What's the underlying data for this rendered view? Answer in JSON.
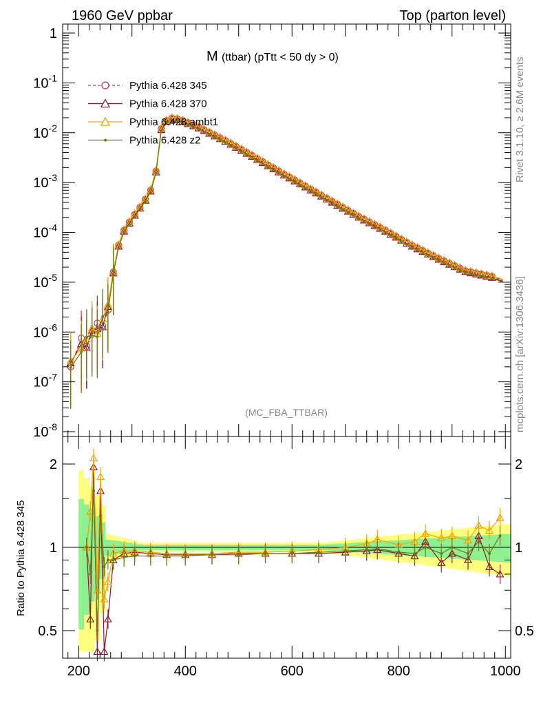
{
  "header": {
    "left": "1960 GeV ppbar",
    "right": "Top (parton level)"
  },
  "side_text": {
    "rivet": "Rivet 3.1.10, ≥ 2.6M events",
    "source": "mcplots.cern.ch [arXiv:1306.3436]"
  },
  "chart_data": [
    {
      "type": "line",
      "title_main": "M",
      "title_sub": "(ttbar)  (pTtt < 50 dy > 0)",
      "annotation": "(MC_FBA_TTBAR)",
      "xlim": [
        170,
        1010
      ],
      "ylim": [
        1e-08,
        2
      ],
      "log_y": true,
      "y_tick_labels": [
        "10^-8",
        "10^-7",
        "10^-6",
        "10^-5",
        "10^-4",
        "10^-3",
        "10^-2",
        "10^-1",
        "1"
      ],
      "legend_position": "top-left",
      "series": [
        {
          "name": "Pythia 6.428 345",
          "color": "#c0395a",
          "marker": "circle",
          "dashed": true
        },
        {
          "name": "Pythia 6.428 370",
          "color": "#8b1a2b",
          "marker": "triangle",
          "dashed": false
        },
        {
          "name": "Pythia 6.428 ambt1",
          "color": "#f0a500",
          "marker": "triangle",
          "dashed": false
        },
        {
          "name": "Pythia 6.428 z2",
          "color": "#6b7a1a",
          "marker": "dot",
          "dashed": false
        }
      ],
      "shape_points": {
        "x": [
          185,
          205,
          215,
          225,
          235,
          245,
          255,
          265,
          275,
          285,
          295,
          305,
          315,
          325,
          335,
          345,
          355,
          365,
          375,
          385,
          395,
          425,
          475,
          525,
          575,
          625,
          675,
          725,
          775,
          825,
          875,
          925,
          975,
          995
        ],
        "y": [
          2e-07,
          6e-07,
          7e-07,
          9e-07,
          1.2e-06,
          1.8e-06,
          2.7e-06,
          1.6e-05,
          5.5e-05,
          0.00011,
          0.00016,
          0.00023,
          0.00032,
          0.00046,
          0.0007,
          0.0017,
          0.012,
          0.0175,
          0.0195,
          0.019,
          0.0175,
          0.013,
          0.007,
          0.0035,
          0.0017,
          0.00085,
          0.00042,
          0.00021,
          0.00011,
          5.5e-05,
          3e-05,
          1.7e-05,
          1.3e-05,
          1.1e-05
        ]
      }
    },
    {
      "type": "line",
      "ylabel": "Ratio to Pythia 6.428 345",
      "ylim": [
        0.4,
        2.4
      ],
      "log_y": true,
      "y_tick_labels": [
        "0.5",
        "1",
        "2"
      ],
      "x_tick_labels": [
        "200",
        "400",
        "600",
        "800",
        "1000"
      ],
      "reference_line": 1,
      "band_inner_color": "#8ef08e",
      "band_outer_color": "#ffff7f",
      "ratio_series": [
        {
          "name": "Pythia 6.428 370",
          "values": [
            1.0,
            0.55,
            1.95,
            0.3,
            1.6,
            0.4,
            0.55,
            0.9,
            0.95,
            0.96,
            0.95,
            0.94,
            0.94,
            0.94,
            0.95,
            0.95,
            0.95,
            0.95,
            0.96,
            0.97,
            0.98,
            0.95,
            0.93,
            1.05,
            0.88,
            0.95,
            0.9,
            1.1,
            0.85,
            0.8
          ]
        },
        {
          "name": "Pythia 6.428 ambt1",
          "values": [
            1.0,
            1.35,
            2.1,
            0.7,
            1.8,
            0.65,
            0.75,
            0.95,
            0.97,
            0.97,
            0.96,
            0.95,
            0.95,
            0.95,
            0.96,
            0.96,
            0.97,
            0.98,
            1.0,
            1.03,
            1.07,
            1.02,
            1.05,
            1.12,
            1.08,
            1.1,
            1.06,
            1.2,
            1.15,
            1.28
          ]
        },
        {
          "name": "Pythia 6.428 z2",
          "values": [
            1.0,
            0.8,
            1.6,
            0.5,
            1.3,
            0.85,
            0.9,
            0.9,
            0.92,
            0.93,
            0.93,
            0.93,
            0.93,
            0.94,
            0.94,
            0.95,
            0.95,
            0.96,
            0.97,
            0.98,
            0.99,
            0.96,
            0.95,
            1.0,
            0.95,
            1.0,
            0.95,
            1.05,
            0.95,
            1.1
          ]
        }
      ],
      "ratio_x": [
        215,
        222,
        228,
        235,
        241,
        248,
        255,
        265,
        285,
        305,
        335,
        365,
        400,
        450,
        500,
        550,
        600,
        650,
        700,
        740,
        760,
        800,
        830,
        850,
        880,
        900,
        930,
        950,
        970,
        990
      ]
    }
  ]
}
